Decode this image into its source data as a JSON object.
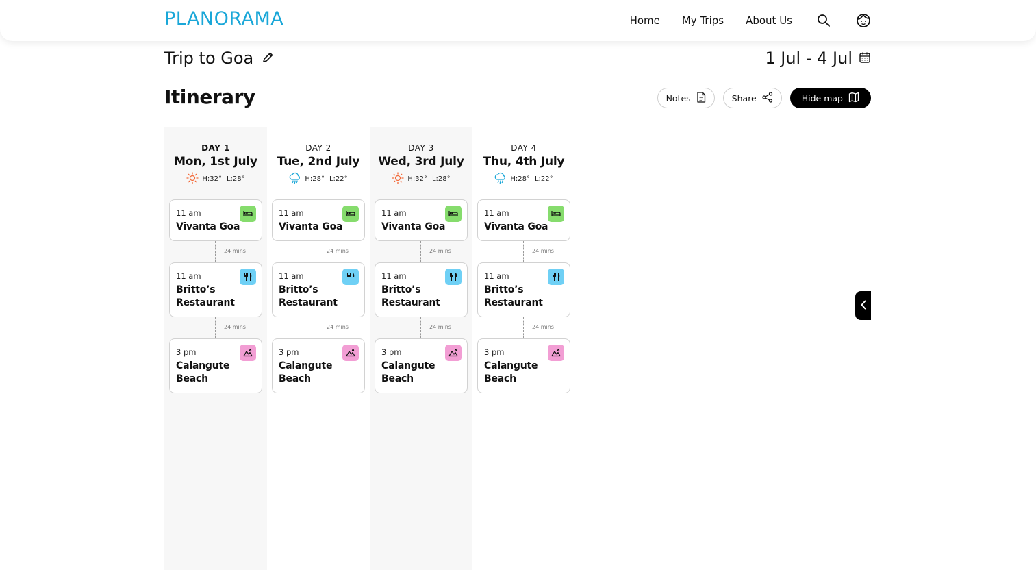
{
  "brand": {
    "logo_text": "PLANORAMA",
    "color": "#1aa7d8"
  },
  "nav": {
    "home": "Home",
    "my_trips": "My Trips",
    "about_us": "About Us",
    "search_icon": "search-icon",
    "profile_icon": "user-face-icon"
  },
  "trip": {
    "title": "Trip to Goa",
    "date_range": "1 Jul - 4 Jul"
  },
  "itinerary": {
    "title": "Itinerary",
    "notes_label": "Notes",
    "share_label": "Share",
    "hide_map_label": "Hide map"
  },
  "days": [
    {
      "label": "DAY 1",
      "date": "Mon, 1st July",
      "weather": "sunny",
      "high": "H:32°",
      "low": "L:28°",
      "stops": [
        {
          "time": "11 am",
          "name": "Vivanta Goa",
          "type": "hotel"
        },
        {
          "time": "11 am",
          "name": "Britto’s Restaurant",
          "type": "food"
        },
        {
          "time": "3 pm",
          "name": "Calangute Beach",
          "type": "nature"
        }
      ],
      "travel": [
        "24 mins",
        "24 mins"
      ]
    },
    {
      "label": "DAY 2",
      "date": "Tue, 2nd July",
      "weather": "rainy",
      "high": "H:28°",
      "low": "L:22°",
      "stops": [
        {
          "time": "11 am",
          "name": "Vivanta Goa",
          "type": "hotel"
        },
        {
          "time": "11 am",
          "name": "Britto’s Restaurant",
          "type": "food"
        },
        {
          "time": "3 pm",
          "name": "Calangute Beach",
          "type": "nature"
        }
      ],
      "travel": [
        "24 mins",
        "24 mins"
      ]
    },
    {
      "label": "DAY 3",
      "date": "Wed, 3rd July",
      "weather": "sunny",
      "high": "H:32°",
      "low": "L:28°",
      "stops": [
        {
          "time": "11 am",
          "name": "Vivanta Goa",
          "type": "hotel"
        },
        {
          "time": "11 am",
          "name": "Britto’s Restaurant",
          "type": "food"
        },
        {
          "time": "3 pm",
          "name": "Calangute Beach",
          "type": "nature"
        }
      ],
      "travel": [
        "24 mins",
        "24 mins"
      ]
    },
    {
      "label": "DAY 4",
      "date": "Thu, 4th July",
      "weather": "rainy",
      "high": "H:28°",
      "low": "L:22°",
      "stops": [
        {
          "time": "11 am",
          "name": "Vivanta Goa",
          "type": "hotel"
        },
        {
          "time": "11 am",
          "name": "Britto’s Restaurant",
          "type": "food"
        },
        {
          "time": "3 pm",
          "name": "Calangute Beach",
          "type": "nature"
        }
      ],
      "travel": [
        "24 mins",
        "24 mins"
      ]
    }
  ],
  "colors": {
    "hotel": "#86dc6d",
    "food": "#6fd0f5",
    "nature": "#f29ed4",
    "sun": "#f36b3b",
    "rain": "#1aa7d8"
  }
}
